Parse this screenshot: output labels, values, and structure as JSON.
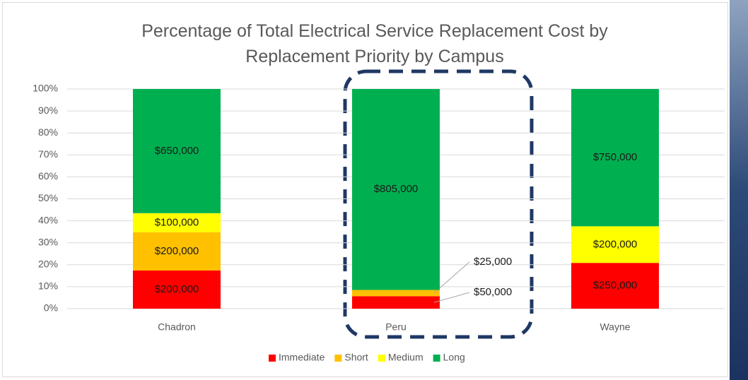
{
  "chart_data": {
    "type": "bar",
    "stacking": "percent",
    "title": "Percentage of Total Electrical Service Replacement Cost by Replacement Priority by Campus",
    "categories": [
      "Chadron",
      "Peru",
      "Wayne"
    ],
    "series": [
      {
        "name": "Immediate",
        "color": "#ff0000",
        "values": [
          200000,
          50000,
          250000
        ],
        "value_labels": [
          "$200,000",
          "$50,000",
          "$250,000"
        ]
      },
      {
        "name": "Short",
        "color": "#ffc000",
        "values": [
          200000,
          25000,
          null
        ],
        "value_labels": [
          "$200,000",
          "$25,000",
          null
        ]
      },
      {
        "name": "Medium",
        "color": "#ffff00",
        "values": [
          100000,
          null,
          200000
        ],
        "value_labels": [
          "$100,000",
          null,
          "$200,000"
        ]
      },
      {
        "name": "Long",
        "color": "#00b050",
        "values": [
          650000,
          805000,
          750000
        ],
        "value_labels": [
          "$650,000",
          "$805,000",
          "$750,000"
        ]
      }
    ],
    "ylim": [
      0,
      100
    ],
    "yticks": [
      {
        "value": 0,
        "label": "0%"
      },
      {
        "value": 10,
        "label": "10%"
      },
      {
        "value": 20,
        "label": "20%"
      },
      {
        "value": 30,
        "label": "30%"
      },
      {
        "value": 40,
        "label": "40%"
      },
      {
        "value": 50,
        "label": "50%"
      },
      {
        "value": 60,
        "label": "60%"
      },
      {
        "value": 70,
        "label": "70%"
      },
      {
        "value": 80,
        "label": "80%"
      },
      {
        "value": 90,
        "label": "90%"
      },
      {
        "value": 100,
        "label": "100%"
      }
    ],
    "grid": true,
    "legend": "bottom"
  }
}
